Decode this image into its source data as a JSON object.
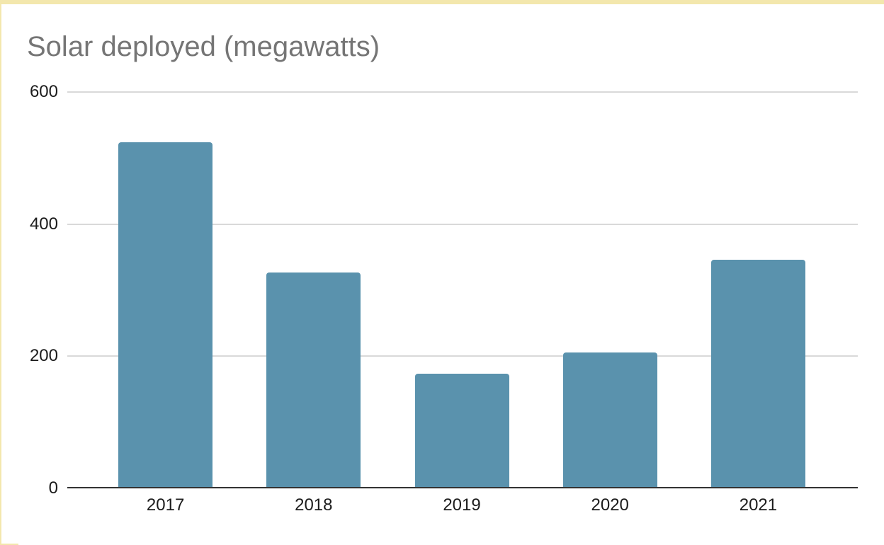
{
  "slide": {
    "background": "#ffffff",
    "accent_border_color": "#f3e7ad"
  },
  "chart_data": {
    "type": "bar",
    "title": "Solar deployed (megawatts)",
    "categories": [
      "2017",
      "2018",
      "2019",
      "2020",
      "2021"
    ],
    "values": [
      523,
      326,
      173,
      205,
      345
    ],
    "xlabel": "",
    "ylabel": "",
    "y_ticks": [
      0,
      200,
      400,
      600
    ],
    "ylim": [
      0,
      600
    ],
    "grid": true,
    "legend": "none",
    "bar_color": "#5a92ad",
    "title_color": "#757575",
    "tick_label_color": "#1c1c1c",
    "gridline_color": "#d9d9d9",
    "axis_line_color": "#333333"
  }
}
